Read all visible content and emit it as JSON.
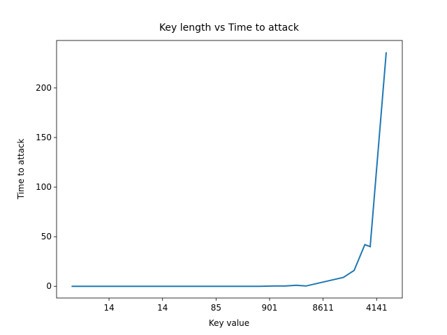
{
  "chart_data": {
    "type": "line",
    "title": "Key length vs Time to attack",
    "x_label": "Key value",
    "y_label": "Time to attack",
    "x": [
      1.5,
      4,
      6.5,
      9,
      11.5,
      14,
      16.5,
      19,
      20.5,
      21.5,
      22.5,
      23.4,
      26.9,
      27.9,
      28.9,
      29.4,
      30.9
    ],
    "series": [
      {
        "name": "Time to attack",
        "color": "#1f77b4",
        "values": [
          0,
          0,
          0,
          0,
          0,
          0,
          0,
          0,
          0.3,
          0.3,
          1,
          0.3,
          9,
          16,
          42,
          40,
          236
        ]
      }
    ],
    "xlim": [
      0.1,
      32.4
    ],
    "xticks": [
      {
        "value": 5,
        "label": "14"
      },
      {
        "value": 10,
        "label": "14"
      },
      {
        "value": 15,
        "label": "85"
      },
      {
        "value": 20,
        "label": "901"
      },
      {
        "value": 25,
        "label": "8611"
      },
      {
        "value": 30,
        "label": "4141"
      }
    ],
    "ylim": [
      -11.8,
      247.8
    ],
    "yticks": [
      0,
      50,
      100,
      150,
      200
    ]
  }
}
